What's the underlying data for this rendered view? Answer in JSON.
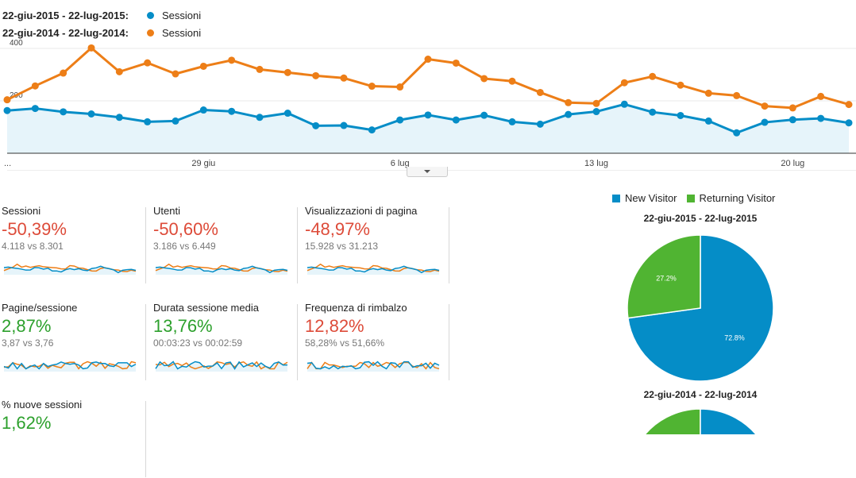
{
  "legend": {
    "current": {
      "range": "22-giu-2015 - 22-lug-2015:",
      "label": "Sessioni",
      "color": "#058dc7"
    },
    "previous": {
      "range": "22-giu-2014 - 22-lug-2014:",
      "label": "Sessioni",
      "color": "#ed7e17"
    }
  },
  "chart_data": [
    {
      "type": "line",
      "x_tick_labels": [
        "...",
        "29 giu",
        "6 lug",
        "13 lug",
        "20 lug"
      ],
      "y_tick_labels": [
        "400",
        "200"
      ],
      "ylim": [
        0,
        400
      ],
      "series": [
        {
          "name": "Sessioni",
          "range": "22-giu-2015 - 22-lug-2015",
          "color": "#058dc7",
          "values": [
            163,
            171,
            158,
            150,
            137,
            120,
            123,
            165,
            160,
            137,
            153,
            105,
            106,
            89,
            127,
            146,
            127,
            145,
            120,
            111,
            148,
            159,
            187,
            157,
            144,
            123,
            78,
            118,
            128,
            133,
            116
          ]
        },
        {
          "name": "Sessioni",
          "range": "22-giu-2014 - 22-lug-2014",
          "color": "#ed7e17",
          "values": [
            204,
            257,
            306,
            402,
            311,
            345,
            303,
            332,
            355,
            320,
            308,
            296,
            287,
            256,
            253,
            359,
            344,
            285,
            275,
            232,
            193,
            190,
            269,
            293,
            260,
            229,
            220,
            180,
            173,
            217,
            186
          ]
        }
      ]
    },
    {
      "type": "pie",
      "title": "22-giu-2015 - 22-lug-2015",
      "slices": [
        {
          "label": "New Visitor",
          "value": 72.8,
          "text": "72.8%",
          "color": "#058dc7"
        },
        {
          "label": "Returning Visitor",
          "value": 27.2,
          "text": "27.2%",
          "color": "#50b432"
        }
      ]
    },
    {
      "type": "pie",
      "title": "22-giu-2014 - 22-lug-2014",
      "slices": [
        {
          "label": "New Visitor",
          "color": "#058dc7"
        },
        {
          "label": "Returning Visitor",
          "color": "#50b432"
        }
      ]
    }
  ],
  "metrics": [
    {
      "label": "Sessioni",
      "change": "-50,39%",
      "trend": "neg",
      "compare": "4.118 vs 8.301"
    },
    {
      "label": "Utenti",
      "change": "-50,60%",
      "trend": "neg",
      "compare": "3.186 vs 6.449"
    },
    {
      "label": "Visualizzazioni di pagina",
      "change": "-48,97%",
      "trend": "neg",
      "compare": "15.928 vs 31.213"
    },
    {
      "label": "Pagine/sessione",
      "change": "2,87%",
      "trend": "pos",
      "compare": "3,87 vs 3,76"
    },
    {
      "label": "Durata sessione media",
      "change": "13,76%",
      "trend": "pos",
      "compare": "00:03:23 vs 00:02:59"
    },
    {
      "label": "Frequenza di rimbalzo",
      "change": "12,82%",
      "trend": "neg",
      "compare": "58,28% vs 51,66%"
    },
    {
      "label": "% nuove sessioni",
      "change": "1,62%",
      "trend": "pos",
      "compare": ""
    }
  ],
  "pie_legend": [
    {
      "label": "New Visitor",
      "color": "#058dc7"
    },
    {
      "label": "Returning Visitor",
      "color": "#50b432"
    }
  ]
}
